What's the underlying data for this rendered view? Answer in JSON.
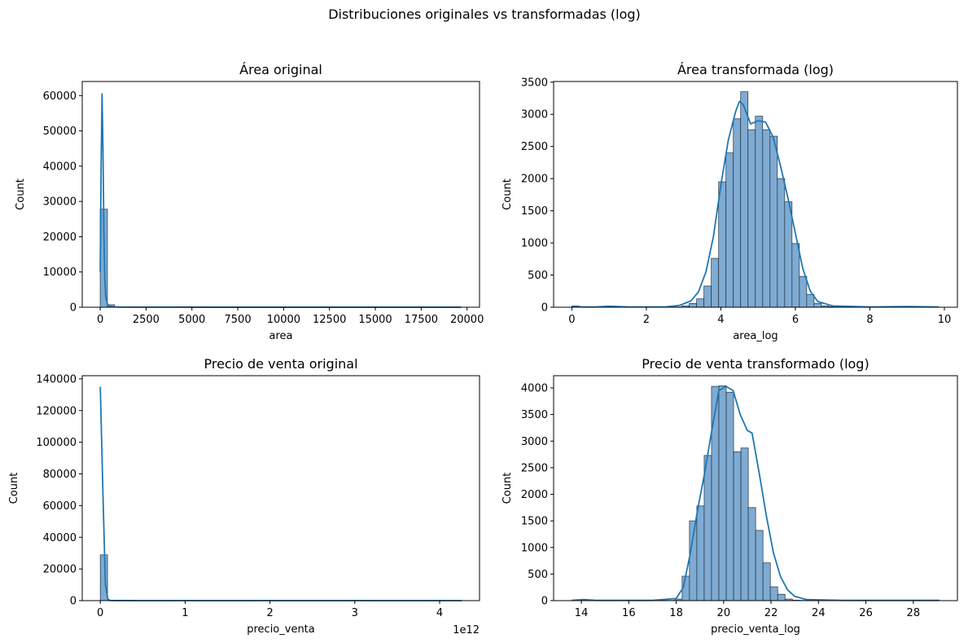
{
  "figure": {
    "suptitle": "Distribuciones originales vs transformadas (log)",
    "bar_fill": "#7fabd2",
    "bar_edge": "#1f2f3f",
    "line_color": "#1f77b4"
  },
  "chart_data": [
    {
      "type": "bar",
      "title": "Área original",
      "xlabel": "area",
      "ylabel": "Count",
      "xlim": [
        -980,
        20680
      ],
      "ylim": [
        0,
        64000
      ],
      "xticks": [
        0,
        2500,
        5000,
        7500,
        10000,
        12500,
        15000,
        17500,
        20000
      ],
      "xticklabels": [
        "0",
        "2500",
        "5000",
        "7500",
        "10000",
        "12500",
        "15000",
        "17500",
        "20000"
      ],
      "yticks": [
        0,
        10000,
        20000,
        30000,
        40000,
        50000,
        60000
      ],
      "yticklabels": [
        "0",
        "10000",
        "20000",
        "30000",
        "40000",
        "50000",
        "60000"
      ],
      "bins": {
        "start": 0,
        "width": 393.6,
        "counts": [
          27800,
          700,
          90,
          35,
          15,
          8,
          5,
          4,
          3,
          2,
          2,
          1,
          1,
          1,
          1,
          1,
          1,
          1,
          1,
          1,
          1,
          1,
          1,
          1,
          1,
          1,
          1,
          1,
          1,
          1,
          1,
          1,
          1,
          1,
          1,
          1,
          1,
          1,
          1,
          1,
          1,
          1,
          1,
          1,
          1,
          1,
          1,
          1,
          1,
          1
        ]
      },
      "kde": {
        "x": [
          0,
          50,
          100,
          150,
          200,
          250,
          300,
          400,
          500,
          700,
          1000,
          2000,
          4000,
          8000,
          12000,
          16000,
          19680
        ],
        "y": [
          10000,
          40000,
          60500,
          45000,
          22000,
          8000,
          3000,
          800,
          300,
          120,
          60,
          30,
          20,
          15,
          12,
          10,
          10
        ]
      }
    },
    {
      "type": "bar",
      "title": "Área transformada (log)",
      "xlabel": "area_log",
      "ylabel": "Count",
      "xlim": [
        -0.49,
        10.35
      ],
      "ylim": [
        0,
        3510
      ],
      "xticks": [
        0,
        2,
        4,
        6,
        8,
        10
      ],
      "xticklabels": [
        "0",
        "2",
        "4",
        "6",
        "8",
        "10"
      ],
      "yticks": [
        0,
        500,
        1000,
        1500,
        2000,
        2500,
        3000,
        3500
      ],
      "yticklabels": [
        "0",
        "500",
        "1000",
        "1500",
        "2000",
        "2500",
        "3000",
        "3500"
      ],
      "bins": {
        "start": 0,
        "width": 0.197,
        "counts": [
          20,
          3,
          3,
          3,
          3,
          3,
          3,
          3,
          3,
          3,
          3,
          3,
          3,
          3,
          5,
          20,
          60,
          130,
          330,
          760,
          1950,
          2400,
          2930,
          3350,
          2760,
          2970,
          2760,
          2660,
          2000,
          1640,
          990,
          480,
          200,
          60,
          20,
          8,
          4,
          3,
          3,
          3,
          3,
          3,
          3,
          3,
          3,
          3,
          3,
          3,
          3,
          3
        ]
      },
      "kde": {
        "x": [
          0,
          0.3,
          0.6,
          1.0,
          1.5,
          2.0,
          2.5,
          2.9,
          3.2,
          3.4,
          3.6,
          3.8,
          4.0,
          4.2,
          4.4,
          4.5,
          4.6,
          4.8,
          5.0,
          5.2,
          5.4,
          5.6,
          5.8,
          6.0,
          6.2,
          6.4,
          6.6,
          7.0,
          8.0,
          9.0,
          9.85
        ],
        "y": [
          10,
          5,
          3,
          15,
          5,
          5,
          5,
          30,
          100,
          240,
          550,
          1100,
          1900,
          2600,
          3050,
          3200,
          3150,
          2850,
          2900,
          2880,
          2650,
          2200,
          1700,
          1150,
          600,
          250,
          90,
          20,
          5,
          10,
          5
        ]
      }
    },
    {
      "type": "bar",
      "title": "Precio de venta original",
      "xlabel": "precio_venta",
      "ylabel": "Count",
      "xlim": [
        -213000000000.0,
        4470000000000.0
      ],
      "ylim": [
        0,
        142000
      ],
      "xticks": [
        0,
        1000000000000.0,
        2000000000000.0,
        3000000000000.0,
        4000000000000.0
      ],
      "xticklabels": [
        "0",
        "1",
        "2",
        "3",
        "4"
      ],
      "x_offset_label": "1e12",
      "yticks": [
        0,
        20000,
        40000,
        60000,
        80000,
        100000,
        120000,
        140000
      ],
      "yticklabels": [
        "0",
        "20000",
        "40000",
        "60000",
        "80000",
        "100000",
        "120000",
        "140000"
      ],
      "bins": {
        "start": 0,
        "width": 85200000000.0,
        "counts": [
          28900,
          2,
          1,
          1,
          1,
          1,
          1,
          1,
          1,
          1,
          1,
          1,
          1,
          1,
          1,
          1,
          1,
          1,
          1,
          1,
          1,
          1,
          1,
          1,
          1,
          1,
          1,
          1,
          1,
          1,
          1,
          1,
          1,
          1,
          1,
          1,
          1,
          1,
          1,
          1,
          1,
          1,
          1,
          1,
          1,
          1,
          1,
          1,
          1,
          1
        ]
      },
      "kde": {
        "x": [
          0,
          30000000000.0,
          60000000000.0,
          90000000000.0,
          120000000000.0,
          200000000000.0,
          500000000000.0,
          1000000000000.0,
          2000000000000.0,
          3000000000000.0,
          4260000000000.0
        ],
        "y": [
          135000,
          70000,
          10000,
          800,
          100,
          20,
          10,
          5,
          5,
          5,
          5
        ]
      }
    },
    {
      "type": "bar",
      "title": "Precio de venta transformado (log)",
      "xlabel": "precio_venta_log",
      "ylabel": "Count",
      "xlim": [
        12.83,
        29.86
      ],
      "ylim": [
        0,
        4230
      ],
      "xticks": [
        14,
        16,
        18,
        20,
        22,
        24,
        26,
        28
      ],
      "xticklabels": [
        "14",
        "16",
        "18",
        "20",
        "22",
        "24",
        "26",
        "28"
      ],
      "yticks": [
        0,
        500,
        1000,
        1500,
        2000,
        2500,
        3000,
        3500,
        4000
      ],
      "yticklabels": [
        "0",
        "500",
        "1000",
        "1500",
        "2000",
        "2500",
        "3000",
        "3500",
        "4000"
      ],
      "bins": {
        "start": 13.6,
        "width": 0.31,
        "counts": [
          5,
          5,
          5,
          5,
          5,
          5,
          5,
          5,
          5,
          5,
          5,
          5,
          5,
          5,
          30,
          460,
          1500,
          1780,
          2730,
          4030,
          4040,
          3920,
          2800,
          2870,
          1750,
          1320,
          710,
          260,
          120,
          30,
          8,
          5,
          5,
          5,
          5,
          5,
          5,
          5,
          5,
          5,
          5,
          5,
          5,
          5,
          5,
          5,
          5,
          5,
          5,
          5
        ]
      },
      "kde": {
        "x": [
          13.6,
          14.1,
          14.6,
          15.5,
          17.0,
          18.0,
          18.3,
          18.6,
          18.9,
          19.2,
          19.5,
          19.8,
          20.1,
          20.4,
          20.7,
          21.0,
          21.2,
          21.5,
          21.8,
          22.1,
          22.4,
          22.7,
          23.0,
          23.5,
          25.0,
          27.0,
          29.1
        ],
        "y": [
          5,
          20,
          5,
          5,
          5,
          40,
          250,
          900,
          1700,
          2400,
          3200,
          3950,
          4030,
          3950,
          3500,
          3200,
          3150,
          2400,
          1600,
          900,
          450,
          200,
          80,
          20,
          5,
          5,
          5
        ]
      }
    }
  ]
}
